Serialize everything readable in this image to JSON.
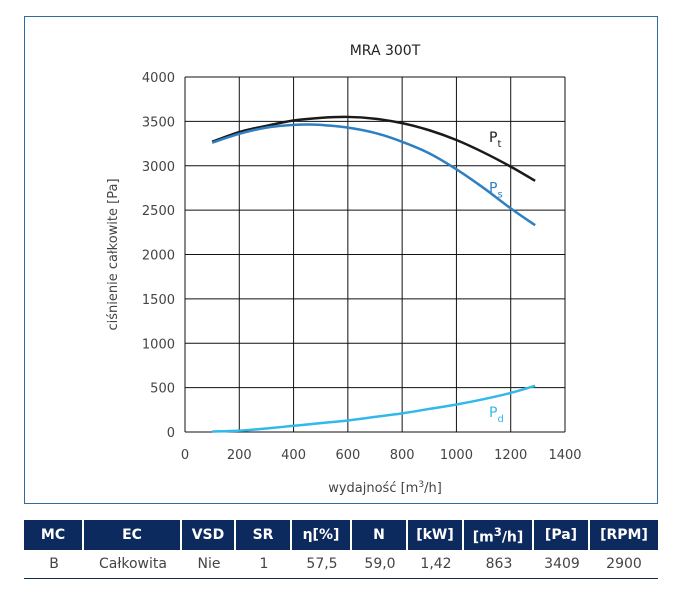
{
  "chart_data": {
    "type": "line",
    "title": "MRA 300T",
    "xlabel": "wydajność [m³/h]",
    "ylabel": "ciśnienie całkowite [Pa]",
    "xlim": [
      0,
      1400
    ],
    "ylim": [
      0,
      4000
    ],
    "xticks": [
      0,
      200,
      400,
      600,
      800,
      1000,
      1200,
      1400
    ],
    "yticks": [
      0,
      500,
      1000,
      1500,
      2000,
      2500,
      3000,
      3500,
      4000
    ],
    "grid": true,
    "series": [
      {
        "name": "Pt",
        "color": "#1a1a1a",
        "x": [
          100,
          200,
          300,
          400,
          500,
          600,
          700,
          800,
          900,
          1000,
          1100,
          1200,
          1290
        ],
        "y": [
          3270,
          3380,
          3450,
          3510,
          3540,
          3550,
          3530,
          3480,
          3400,
          3290,
          3150,
          2990,
          2830
        ]
      },
      {
        "name": "Ps",
        "color": "#2f7fc1",
        "x": [
          100,
          200,
          300,
          400,
          450,
          500,
          600,
          700,
          800,
          900,
          1000,
          1100,
          1200,
          1290
        ],
        "y": [
          3260,
          3360,
          3430,
          3460,
          3465,
          3460,
          3430,
          3370,
          3270,
          3140,
          2960,
          2750,
          2520,
          2330
        ]
      },
      {
        "name": "Pd",
        "color": "#33b8ea",
        "x": [
          100,
          200,
          300,
          400,
          500,
          600,
          700,
          800,
          900,
          1000,
          1100,
          1200,
          1290
        ],
        "y": [
          5,
          15,
          40,
          70,
          100,
          130,
          170,
          210,
          260,
          310,
          370,
          440,
          520
        ]
      }
    ],
    "series_labels": [
      {
        "main": "P",
        "sub": "t"
      },
      {
        "main": "P",
        "sub": "s"
      },
      {
        "main": "P",
        "sub": "d"
      }
    ]
  },
  "table": {
    "headers": [
      "MC",
      "EC",
      "VSD",
      "SR",
      "η[%]",
      "N",
      "[kW]",
      "[m³/h]",
      "[Pa]",
      "[RPM]"
    ],
    "row": [
      "B",
      "Całkowita",
      "Nie",
      "1",
      "57,5",
      "59,0",
      "1,42",
      "863",
      "3409",
      "2900"
    ]
  },
  "colors": {
    "frame": "#2f6aa0",
    "header_bg": "#0d2a5e"
  }
}
